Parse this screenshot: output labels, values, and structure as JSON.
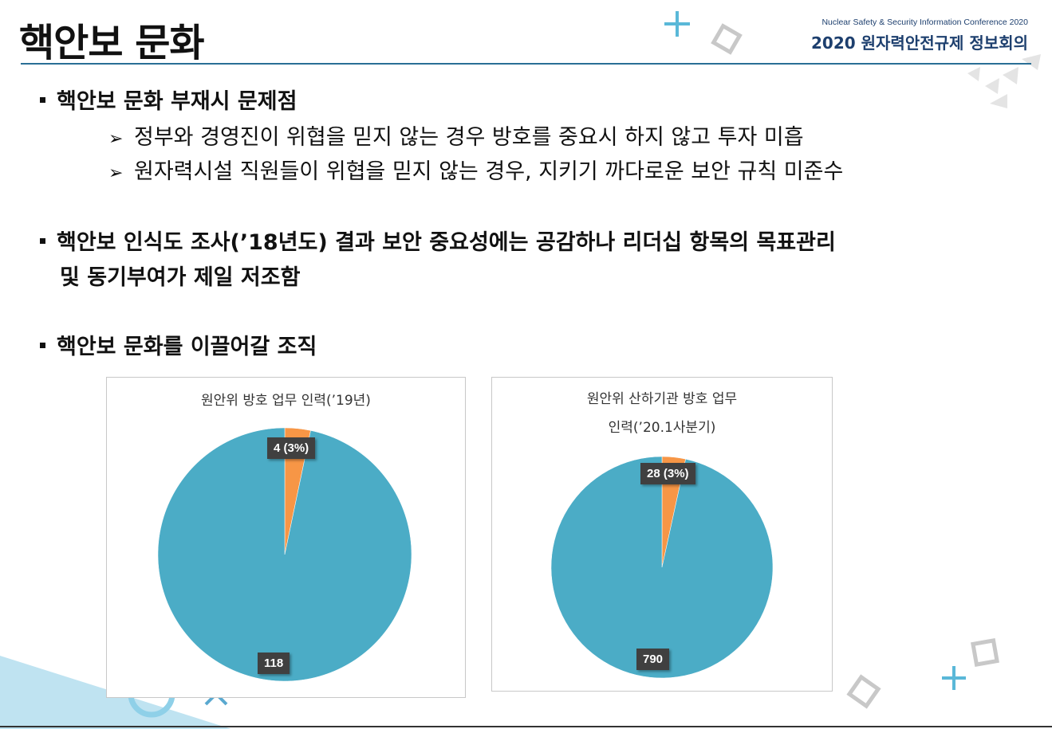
{
  "slide": {
    "title": "핵안보 문화",
    "conference_sub": "Nuclear Safety & Security Information Conference 2020",
    "conference_main": "2020 원자력안전규제 정보회의"
  },
  "bullets": [
    {
      "text": "핵안보 문화 부재시 문제점",
      "subs": [
        "정부와 경영진이 위협을 믿지 않는 경우 방호를 중요시 하지 않고 투자 미흡",
        "원자력시설 직원들이 위협을 믿지 않는 경우, 지키기 까다로운 보안 규칙 미준수"
      ]
    },
    {
      "text_line1": "핵안보 인식도 조사(’18년도) 결과 보안 중요성에는 공감하나 리더십 항목의 목표관리",
      "text_line2": "및 동기부여가 제일 저조함"
    },
    {
      "text": "핵안보 문화를 이끌어갈 조직"
    }
  ],
  "colors": {
    "teal": "#4bacc6",
    "orange": "#f79646",
    "navy": "#1d3f6e",
    "accent": "#2a6f96"
  },
  "chart_data": [
    {
      "type": "pie",
      "title_lines": [
        "원안위 방호 업무 인력(’19년)"
      ],
      "slices": [
        {
          "value": 4,
          "label": "4 (3%)",
          "color": "#f79646"
        },
        {
          "value": 118,
          "label": "118",
          "color": "#4bacc6"
        }
      ]
    },
    {
      "type": "pie",
      "title_lines": [
        "원안위 산하기관 방호 업무",
        "인력(’20.1사분기)"
      ],
      "slices": [
        {
          "value": 28,
          "label": "28 (3%)",
          "color": "#f79646"
        },
        {
          "value": 790,
          "label": "790",
          "color": "#4bacc6"
        }
      ]
    }
  ],
  "icons": [
    "plus-icon",
    "diamond-outline-icon",
    "triangle-pattern-icon",
    "circle-ring-icon",
    "cross-icon"
  ]
}
